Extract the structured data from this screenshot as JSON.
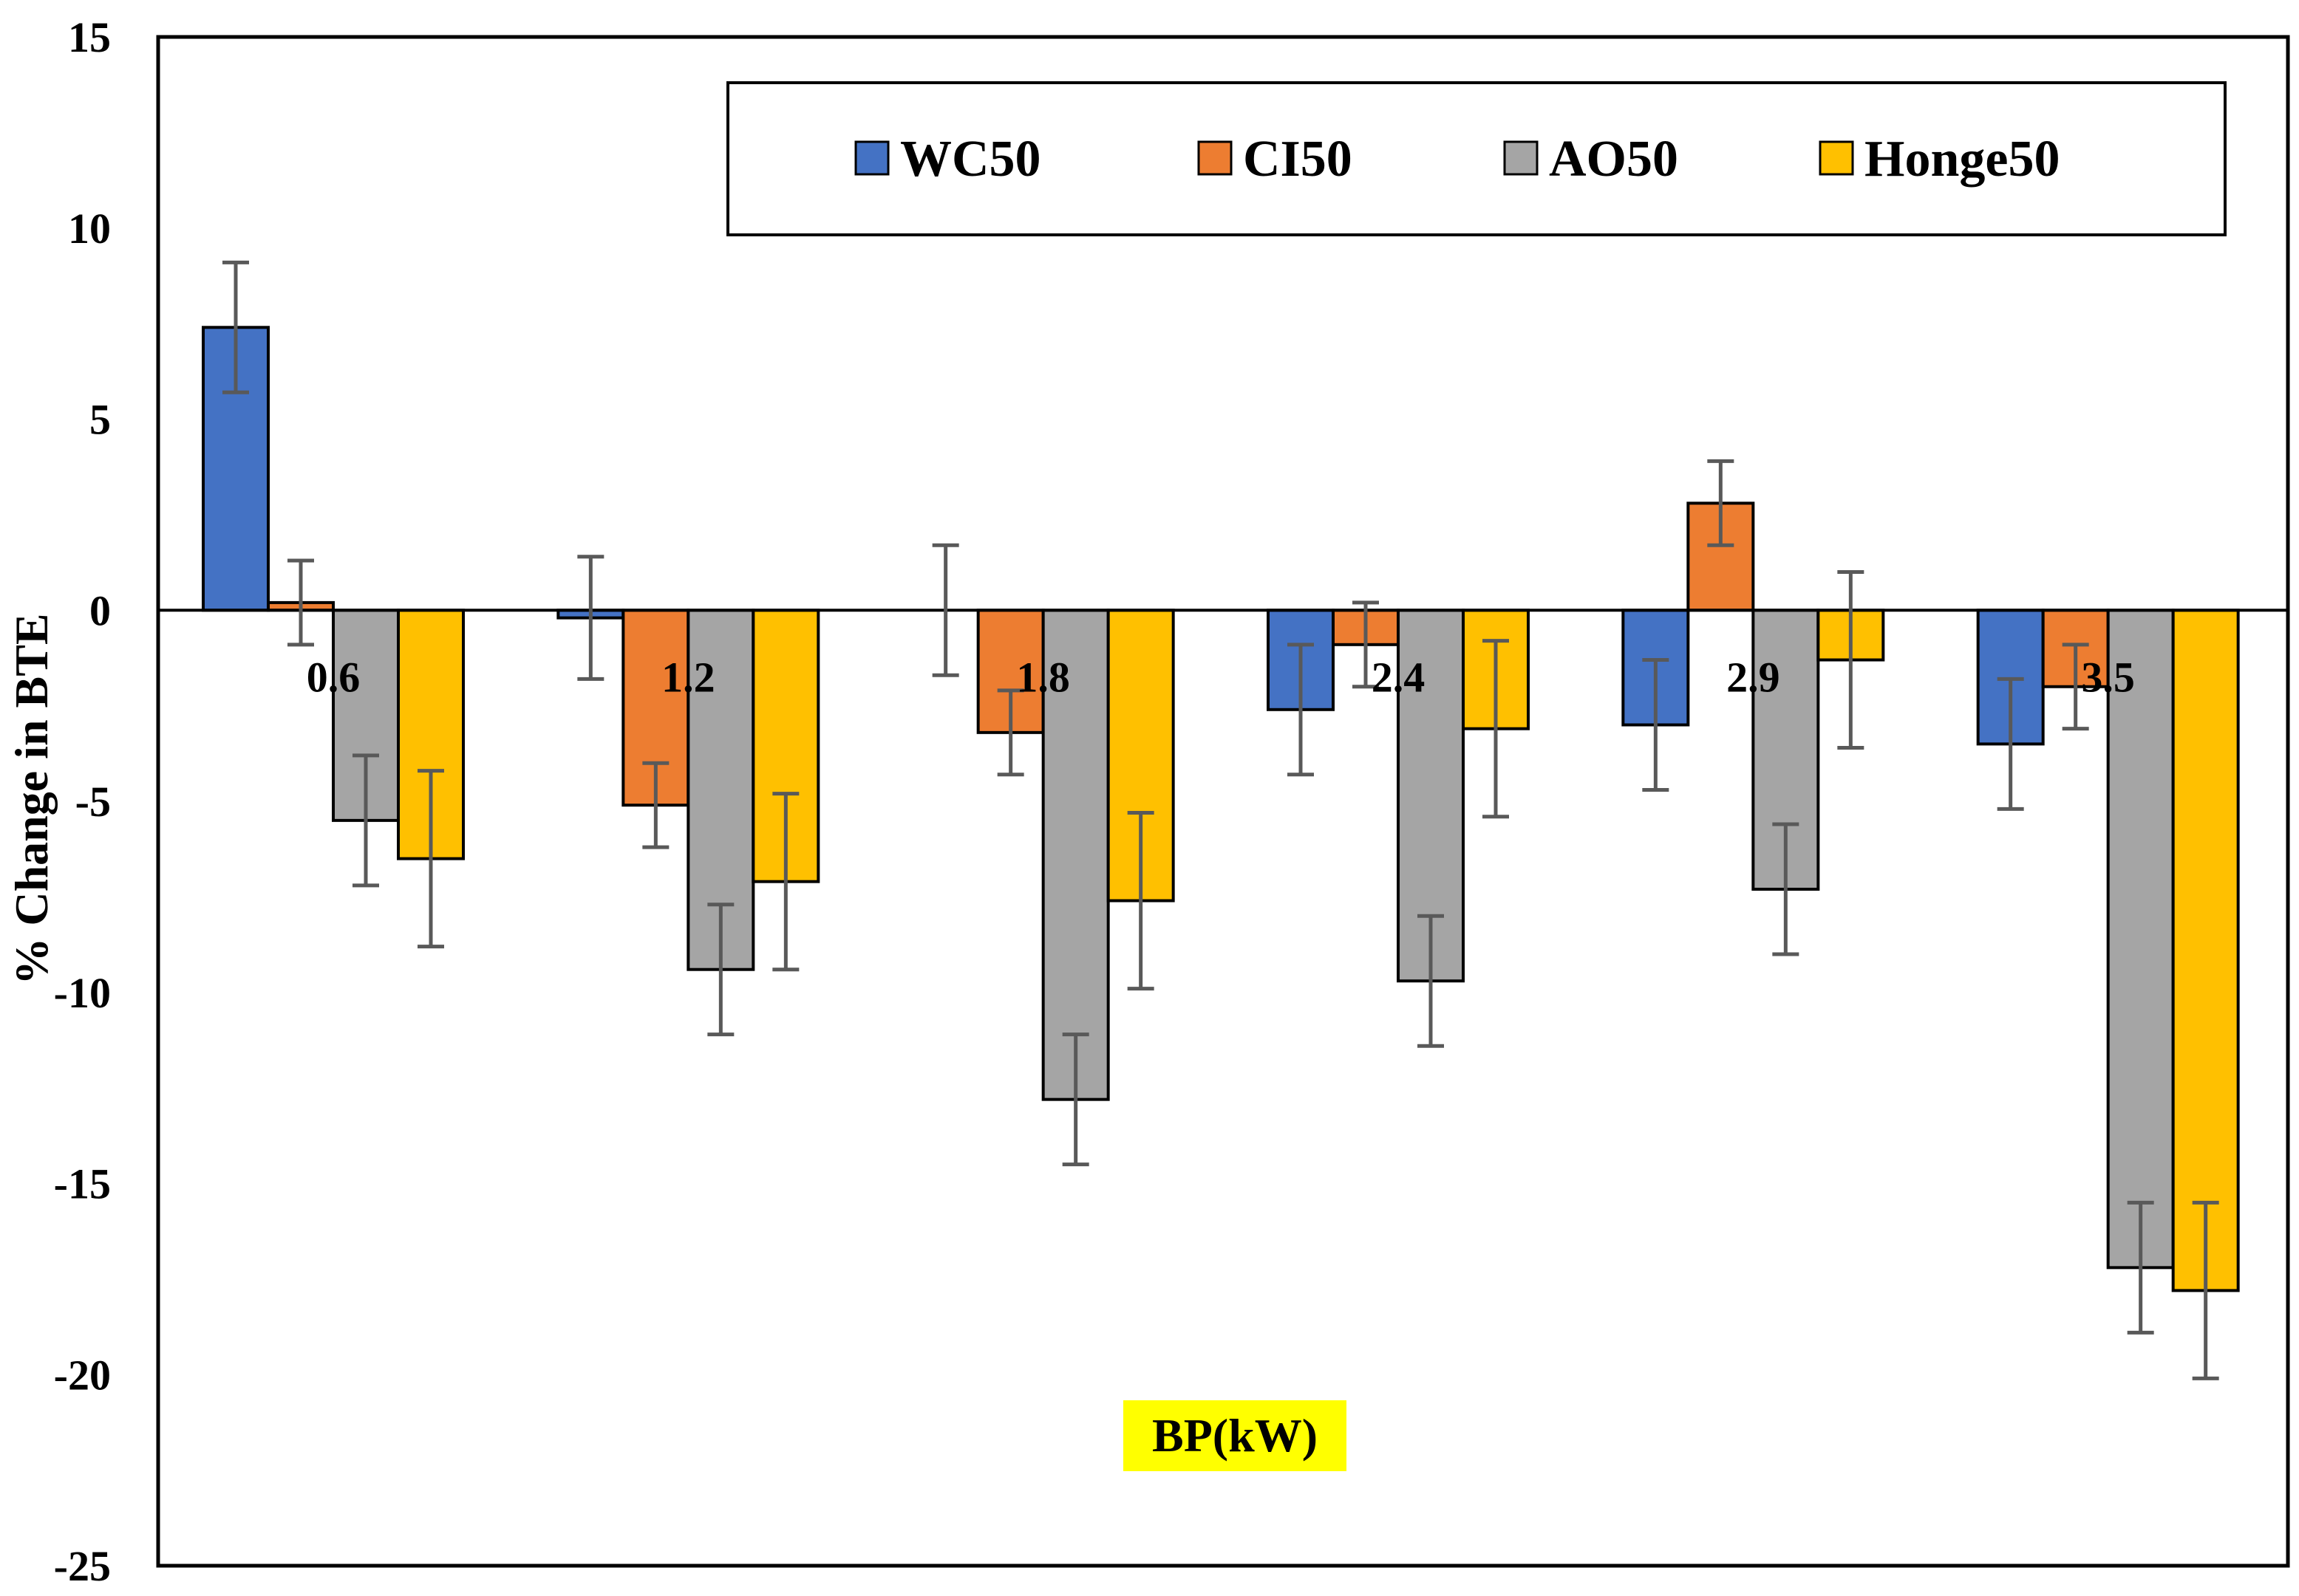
{
  "chart_data": {
    "type": "bar",
    "title": "",
    "xlabel": "BP(kW)",
    "ylabel": "% Change in BTE",
    "ylim": [
      -25,
      15
    ],
    "yticks": [
      15,
      10,
      5,
      0,
      -5,
      -10,
      -15,
      -20,
      -25
    ],
    "categories": [
      "0.6",
      "1.2",
      "1.8",
      "2.4",
      "2.9",
      "3.5"
    ],
    "series": [
      {
        "name": "WC50",
        "color": "#4472C4",
        "values": [
          7.4,
          -0.2,
          0.0,
          -2.6,
          -3.0,
          -3.5
        ],
        "errors": [
          1.7,
          1.6,
          1.7,
          1.7,
          1.7,
          1.7
        ]
      },
      {
        "name": "CI50",
        "color": "#ED7D31",
        "values": [
          0.2,
          -5.1,
          -3.2,
          -0.9,
          2.8,
          -2.0
        ],
        "errors": [
          1.1,
          1.1,
          1.1,
          1.1,
          1.1,
          1.1
        ]
      },
      {
        "name": "AO50",
        "color": "#A5A5A5",
        "values": [
          -5.5,
          -9.4,
          -12.8,
          -9.7,
          -7.3,
          -17.2
        ],
        "errors": [
          1.7,
          1.7,
          1.7,
          1.7,
          1.7,
          1.7
        ]
      },
      {
        "name": "Honge50",
        "color": "#FFC000",
        "values": [
          -6.5,
          -7.1,
          -7.6,
          -3.1,
          -1.3,
          -17.8
        ],
        "errors": [
          2.3,
          2.3,
          2.3,
          2.3,
          2.3,
          2.3
        ]
      }
    ],
    "legend_position": "top-right",
    "xlabel_highlight": "#FFFF00",
    "grid": false
  }
}
